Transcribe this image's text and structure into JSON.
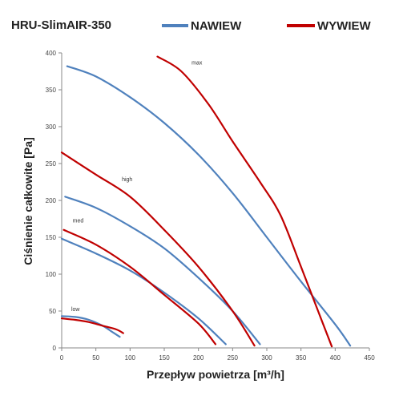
{
  "chart_data": {
    "type": "line",
    "title": "HRU-SlimAIR-350",
    "xlabel": "Przepływ powietrza [m³/h]",
    "ylabel": "Ciśnienie całkowite [Pa]",
    "xlim": [
      0,
      450
    ],
    "ylim": [
      0,
      400
    ],
    "x_ticks": [
      0,
      50,
      100,
      150,
      200,
      250,
      300,
      350,
      400,
      450
    ],
    "y_ticks": [
      0,
      50,
      100,
      150,
      200,
      250,
      300,
      350,
      400
    ],
    "grid": false,
    "legend_position": "top",
    "legend": [
      {
        "name": "NAWIEW",
        "color": "#4f81bd"
      },
      {
        "name": "WYWIEW",
        "color": "#c00000"
      }
    ],
    "series": [
      {
        "name": "NAWIEW",
        "label": "max",
        "color": "#4f81bd",
        "points": [
          [
            8,
            382
          ],
          [
            50,
            368
          ],
          [
            100,
            340
          ],
          [
            150,
            305
          ],
          [
            200,
            262
          ],
          [
            250,
            210
          ],
          [
            300,
            150
          ],
          [
            350,
            90
          ],
          [
            400,
            32
          ],
          [
            422,
            3
          ]
        ]
      },
      {
        "name": "NAWIEW",
        "label": "high",
        "color": "#4f81bd",
        "points": [
          [
            5,
            205
          ],
          [
            50,
            190
          ],
          [
            100,
            165
          ],
          [
            150,
            135
          ],
          [
            200,
            95
          ],
          [
            250,
            50
          ],
          [
            290,
            5
          ]
        ]
      },
      {
        "name": "NAWIEW",
        "label": "med",
        "color": "#4f81bd",
        "points": [
          [
            0,
            148
          ],
          [
            50,
            128
          ],
          [
            100,
            105
          ],
          [
            150,
            75
          ],
          [
            200,
            40
          ],
          [
            240,
            5
          ]
        ]
      },
      {
        "name": "NAWIEW",
        "label": "low",
        "color": "#4f81bd",
        "points": [
          [
            0,
            43
          ],
          [
            20,
            42
          ],
          [
            40,
            38
          ],
          [
            60,
            30
          ],
          [
            75,
            21
          ],
          [
            85,
            15
          ]
        ]
      },
      {
        "name": "WYWIEW",
        "label": "max",
        "color": "#c00000",
        "points": [
          [
            140,
            395
          ],
          [
            175,
            375
          ],
          [
            215,
            330
          ],
          [
            250,
            280
          ],
          [
            290,
            225
          ],
          [
            320,
            180
          ],
          [
            350,
            110
          ],
          [
            375,
            50
          ],
          [
            395,
            2
          ]
        ]
      },
      {
        "name": "WYWIEW",
        "label": "high",
        "color": "#c00000",
        "points": [
          [
            0,
            265
          ],
          [
            50,
            235
          ],
          [
            100,
            205
          ],
          [
            150,
            160
          ],
          [
            200,
            110
          ],
          [
            250,
            50
          ],
          [
            282,
            3
          ]
        ]
      },
      {
        "name": "WYWIEW",
        "label": "med",
        "color": "#c00000",
        "points": [
          [
            3,
            160
          ],
          [
            50,
            140
          ],
          [
            100,
            110
          ],
          [
            150,
            72
          ],
          [
            200,
            33
          ],
          [
            225,
            5
          ]
        ]
      },
      {
        "name": "WYWIEW",
        "label": "low",
        "color": "#c00000",
        "points": [
          [
            0,
            40
          ],
          [
            20,
            38
          ],
          [
            40,
            35
          ],
          [
            60,
            30
          ],
          [
            80,
            25
          ],
          [
            90,
            20
          ]
        ]
      }
    ],
    "annotations": [
      {
        "text": "max",
        "x": 190,
        "y": 384
      },
      {
        "text": "high",
        "x": 88,
        "y": 226
      },
      {
        "text": "med",
        "x": 16,
        "y": 170
      },
      {
        "text": "low",
        "x": 14,
        "y": 50
      }
    ]
  }
}
